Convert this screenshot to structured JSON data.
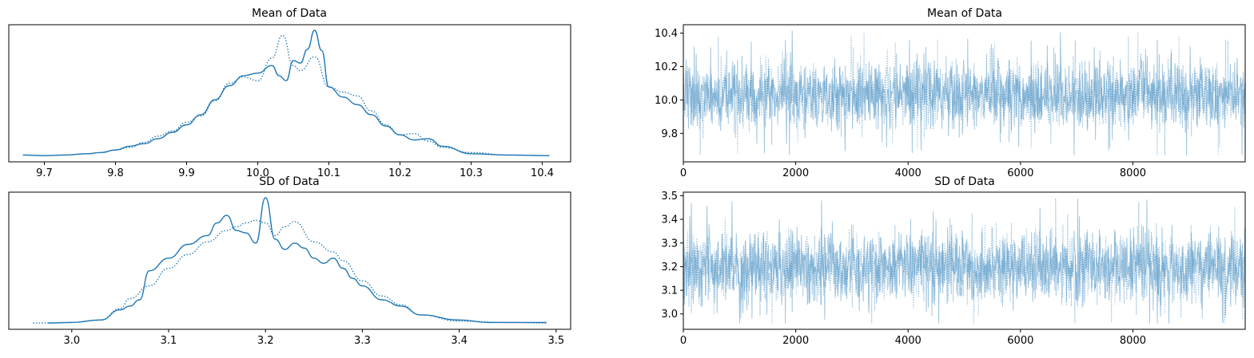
{
  "chart_data": [
    {
      "type": "line",
      "title": "Mean of Data",
      "xlabel": "",
      "ylabel": "",
      "xlim": [
        9.65,
        10.44
      ],
      "xticks": [
        "9.7",
        "9.8",
        "9.9",
        "10.0",
        "10.1",
        "10.2",
        "10.3",
        "10.4"
      ],
      "yticks": [],
      "series": [
        {
          "style": "solid",
          "x": [
            9.67,
            9.7,
            9.73,
            9.76,
            9.78,
            9.8,
            9.82,
            9.84,
            9.86,
            9.88,
            9.9,
            9.92,
            9.94,
            9.96,
            9.98,
            10.0,
            10.02,
            10.03,
            10.04,
            10.05,
            10.06,
            10.07,
            10.08,
            10.09,
            10.1,
            10.12,
            10.14,
            10.16,
            10.18,
            10.2,
            10.22,
            10.24,
            10.26,
            10.3,
            10.35,
            10.41
          ],
          "y": [
            0.01,
            0.005,
            0.01,
            0.02,
            0.03,
            0.05,
            0.08,
            0.1,
            0.14,
            0.19,
            0.25,
            0.33,
            0.45,
            0.56,
            0.64,
            0.66,
            0.72,
            0.64,
            0.6,
            0.76,
            0.74,
            0.85,
            1.0,
            0.84,
            0.55,
            0.47,
            0.41,
            0.33,
            0.24,
            0.17,
            0.13,
            0.14,
            0.08,
            0.02,
            0.01,
            0.005
          ]
        },
        {
          "style": "dotted",
          "x": [
            9.67,
            9.7,
            9.73,
            9.76,
            9.78,
            9.8,
            9.82,
            9.84,
            9.86,
            9.88,
            9.9,
            9.92,
            9.94,
            9.96,
            9.98,
            10.0,
            10.02,
            10.035,
            10.05,
            10.06,
            10.08,
            10.1,
            10.12,
            10.14,
            10.16,
            10.18,
            10.2,
            10.22,
            10.24,
            10.26,
            10.3,
            10.35,
            10.41
          ],
          "y": [
            0.01,
            0.005,
            0.01,
            0.02,
            0.03,
            0.05,
            0.07,
            0.11,
            0.16,
            0.2,
            0.27,
            0.32,
            0.44,
            0.58,
            0.63,
            0.6,
            0.78,
            0.96,
            0.72,
            0.68,
            0.79,
            0.55,
            0.51,
            0.48,
            0.36,
            0.25,
            0.17,
            0.18,
            0.12,
            0.07,
            0.03,
            0.01,
            0.005
          ]
        }
      ]
    },
    {
      "type": "line",
      "title": "Mean of Data",
      "xlabel": "",
      "ylabel": "",
      "xlim": [
        0,
        9999
      ],
      "ylim": [
        9.63,
        10.45
      ],
      "xticks": [
        "0",
        "2000",
        "4000",
        "6000",
        "8000"
      ],
      "yticks": [
        "9.8",
        "10.0",
        "10.2",
        "10.4"
      ],
      "trace_center": 10.03,
      "trace_spread": 0.1,
      "trace_min": 9.67,
      "trace_max": 10.42
    },
    {
      "type": "line",
      "title": "SD of Data",
      "xlabel": "",
      "ylabel": "",
      "xlim": [
        2.935,
        3.515
      ],
      "xticks": [
        "3.0",
        "3.1",
        "3.2",
        "3.3",
        "3.4",
        "3.5"
      ],
      "yticks": [],
      "series": [
        {
          "style": "solid",
          "x": [
            2.975,
            3.0,
            3.03,
            3.05,
            3.06,
            3.07,
            3.08,
            3.1,
            3.12,
            3.14,
            3.15,
            3.16,
            3.17,
            3.18,
            3.19,
            3.2,
            3.21,
            3.22,
            3.23,
            3.24,
            3.25,
            3.26,
            3.27,
            3.28,
            3.29,
            3.3,
            3.32,
            3.34,
            3.36,
            3.4,
            3.43,
            3.49
          ],
          "y": [
            0.005,
            0.01,
            0.03,
            0.11,
            0.14,
            0.19,
            0.42,
            0.52,
            0.63,
            0.7,
            0.8,
            0.86,
            0.74,
            0.72,
            0.64,
            1.0,
            0.67,
            0.59,
            0.64,
            0.6,
            0.52,
            0.48,
            0.52,
            0.44,
            0.36,
            0.3,
            0.19,
            0.14,
            0.07,
            0.03,
            0.01,
            0.01
          ]
        },
        {
          "style": "dotted",
          "x": [
            2.96,
            3.0,
            3.03,
            3.05,
            3.06,
            3.08,
            3.1,
            3.12,
            3.14,
            3.16,
            3.17,
            3.18,
            3.19,
            3.2,
            3.21,
            3.22,
            3.23,
            3.25,
            3.27,
            3.28,
            3.3,
            3.32,
            3.34,
            3.36,
            3.4,
            3.45,
            3.49
          ],
          "y": [
            0.005,
            0.01,
            0.03,
            0.12,
            0.2,
            0.3,
            0.44,
            0.55,
            0.65,
            0.74,
            0.77,
            0.8,
            0.82,
            0.8,
            0.7,
            0.77,
            0.81,
            0.65,
            0.57,
            0.5,
            0.34,
            0.22,
            0.15,
            0.07,
            0.02,
            0.01,
            0.005
          ]
        }
      ]
    },
    {
      "type": "line",
      "title": "SD of Data",
      "xlabel": "",
      "ylabel": "",
      "xlim": [
        0,
        9999
      ],
      "ylim": [
        2.935,
        3.515
      ],
      "xticks": [
        "0",
        "2000",
        "4000",
        "6000",
        "8000"
      ],
      "yticks": [
        "3.0",
        "3.1",
        "3.2",
        "3.3",
        "3.4",
        "3.5"
      ],
      "trace_center": 3.2,
      "trace_spread": 0.075,
      "trace_min": 2.96,
      "trace_max": 3.49
    }
  ],
  "colors": {
    "kde": "#1f77b4",
    "trace": "#1f77b4"
  }
}
